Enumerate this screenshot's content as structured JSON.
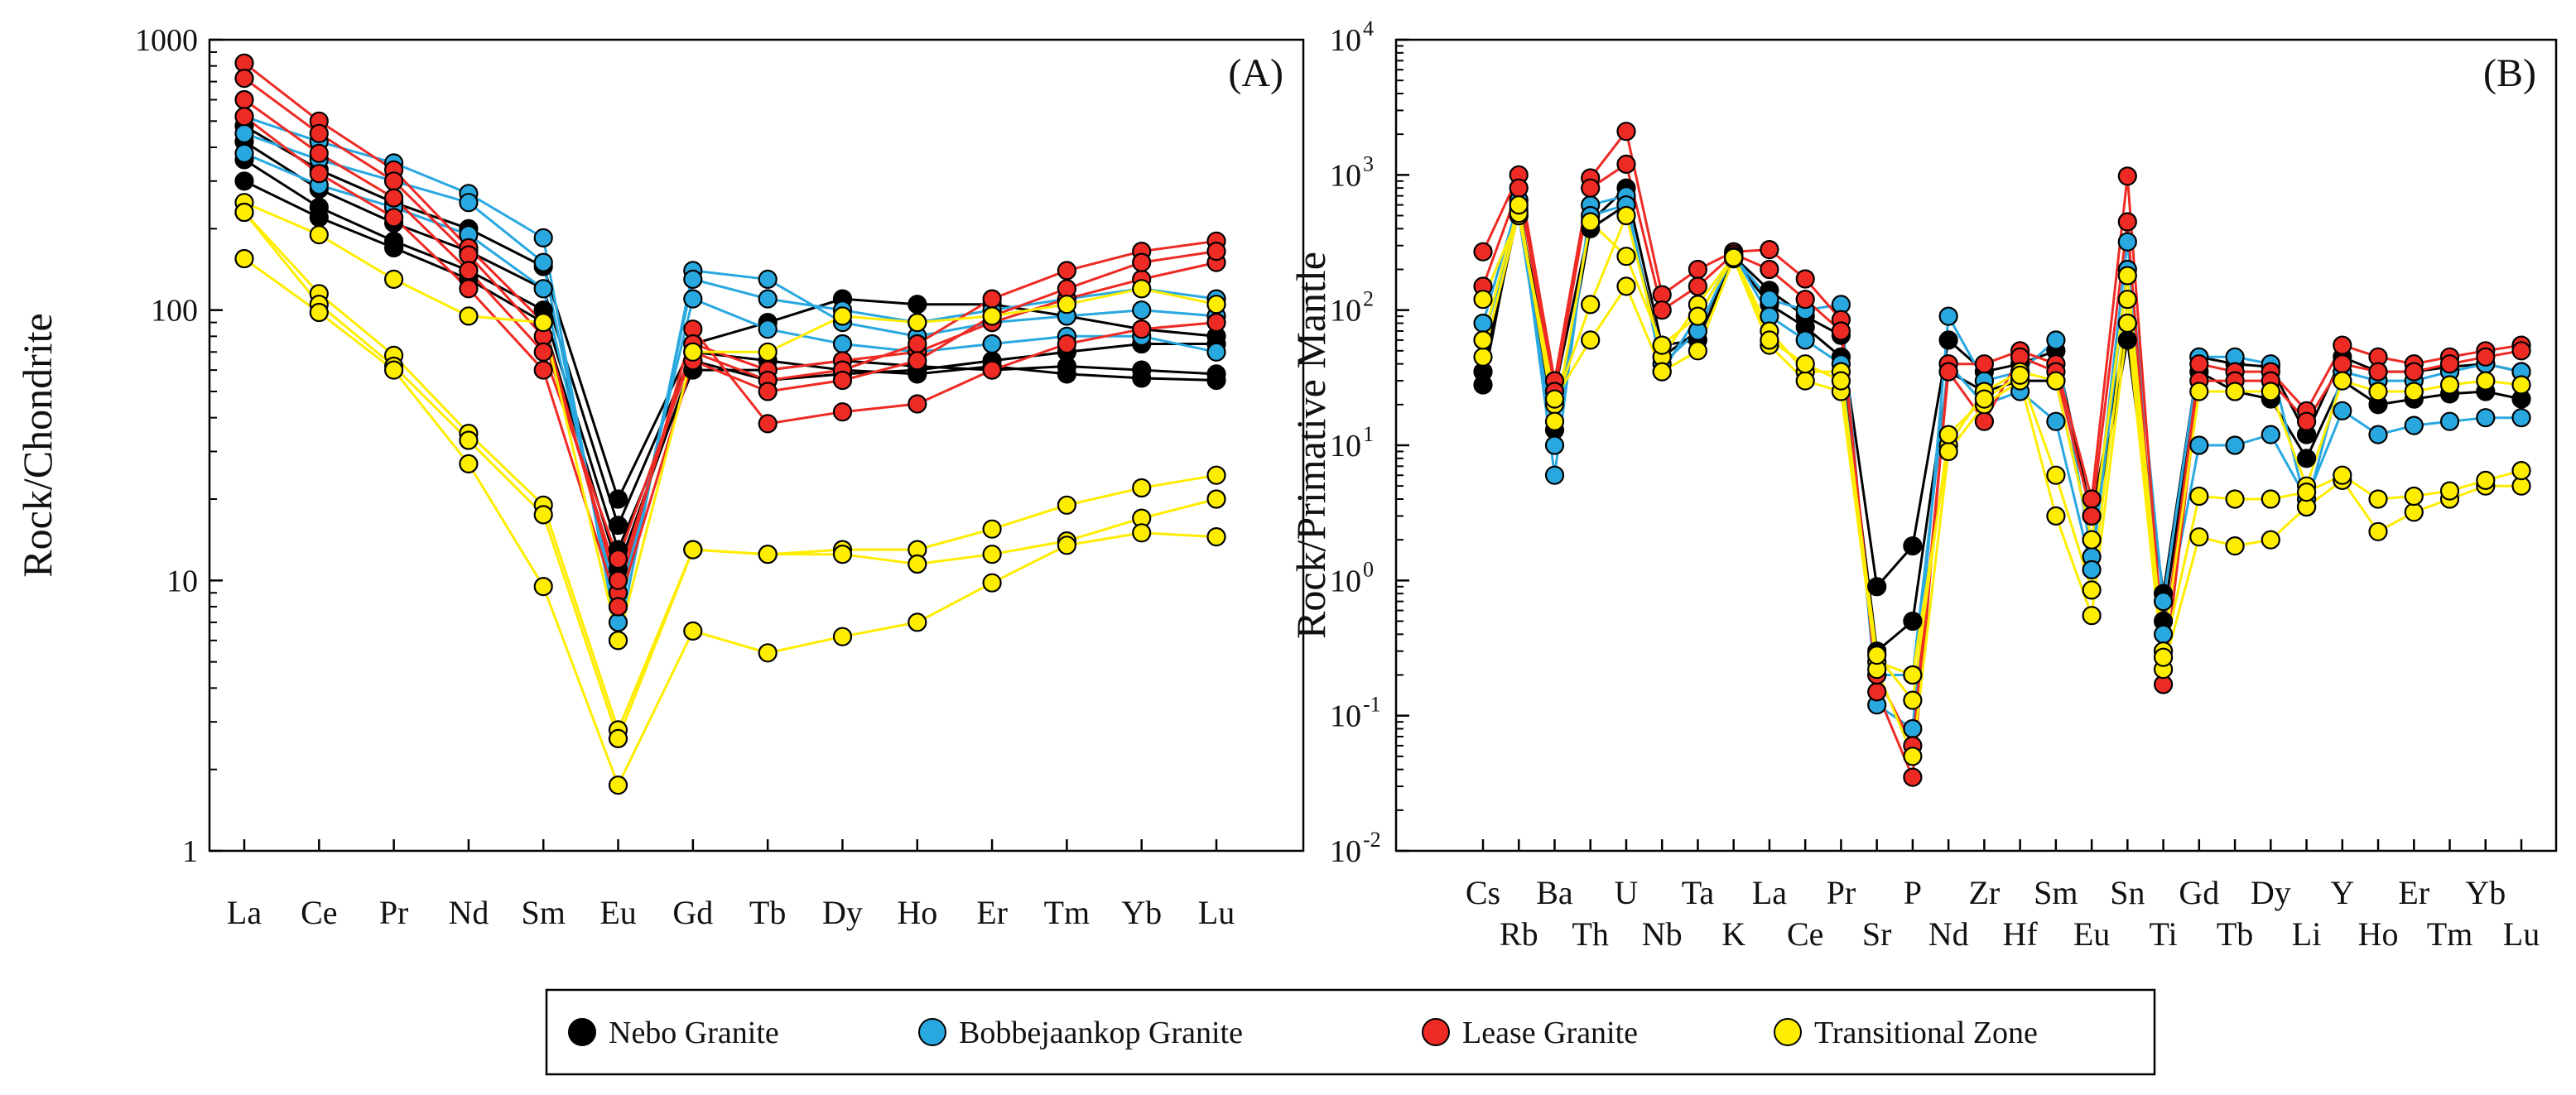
{
  "chart_data": [
    {
      "type": "line",
      "panel_label": "(A)",
      "ylabel": "Rock/Chondrite",
      "yscale": "log",
      "ylim": [
        1,
        1000
      ],
      "yticks": [
        1,
        10,
        100,
        1000
      ],
      "ytick_labels": [
        "1",
        "10",
        "100",
        "1000"
      ],
      "categories": [
        "La",
        "Ce",
        "Pr",
        "Nd",
        "Sm",
        "Eu",
        "Gd",
        "Tb",
        "Dy",
        "Ho",
        "Er",
        "Tm",
        "Yb",
        "Lu"
      ],
      "series": [
        {
          "name": "Nebo Granite",
          "values": [
            480,
            330,
            250,
            200,
            145,
            20,
            75,
            90,
            110,
            105,
            105,
            95,
            85,
            80
          ]
        },
        {
          "name": "Nebo Granite",
          "values": [
            420,
            280,
            210,
            165,
            120,
            16,
            70,
            65,
            60,
            58,
            62,
            58,
            56,
            55
          ]
        },
        {
          "name": "Nebo Granite",
          "values": [
            360,
            240,
            180,
            140,
            100,
            13,
            60,
            60,
            65,
            62,
            60,
            62,
            60,
            58
          ]
        },
        {
          "name": "Nebo Granite",
          "values": [
            300,
            220,
            170,
            130,
            90,
            11,
            65,
            55,
            58,
            60,
            65,
            70,
            75,
            75
          ]
        },
        {
          "name": "Bobbejaankop Granite",
          "values": [
            520,
            420,
            350,
            270,
            185,
            6,
            140,
            130,
            90,
            80,
            90,
            95,
            100,
            95
          ]
        },
        {
          "name": "Bobbejaankop Granite",
          "values": [
            450,
            360,
            300,
            250,
            150,
            7,
            130,
            110,
            100,
            90,
            100,
            110,
            120,
            110
          ]
        },
        {
          "name": "Bobbejaankop Granite",
          "values": [
            380,
            290,
            240,
            190,
            120,
            8,
            110,
            85,
            75,
            70,
            75,
            80,
            80,
            70
          ]
        },
        {
          "name": "Lease Granite",
          "values": [
            820,
            500,
            330,
            170,
            90,
            9,
            85,
            38,
            42,
            45,
            60,
            75,
            85,
            90
          ]
        },
        {
          "name": "Lease Granite",
          "values": [
            720,
            450,
            300,
            160,
            80,
            10,
            75,
            60,
            65,
            70,
            90,
            110,
            130,
            150
          ]
        },
        {
          "name": "Lease Granite",
          "values": [
            600,
            380,
            260,
            140,
            70,
            12,
            70,
            55,
            60,
            75,
            110,
            140,
            165,
            180
          ]
        },
        {
          "name": "Lease Granite",
          "values": [
            520,
            320,
            220,
            120,
            60,
            8,
            65,
            50,
            55,
            65,
            95,
            120,
            150,
            165
          ]
        },
        {
          "name": "Transitional Zone",
          "values": [
            250,
            190,
            130,
            95,
            90,
            6,
            70,
            70,
            95,
            90,
            95,
            105,
            120,
            105
          ]
        },
        {
          "name": "Transitional Zone",
          "values": [
            230,
            115,
            68,
            35,
            19,
            2.8,
            13,
            12.5,
            13,
            13,
            15.5,
            19,
            22,
            24.5
          ]
        },
        {
          "name": "Transitional Zone",
          "values": [
            230,
            105,
            62,
            33,
            17.5,
            2.6,
            13,
            12.5,
            12.5,
            11.5,
            12.5,
            14,
            17,
            20
          ]
        },
        {
          "name": "Transitional Zone",
          "values": [
            155,
            98,
            60,
            27,
            9.5,
            1.75,
            6.5,
            5.4,
            6.2,
            7,
            9.8,
            13.5,
            15,
            14.5
          ]
        }
      ]
    },
    {
      "type": "line",
      "panel_label": "(B)",
      "ylabel": "Rock/Primative Mantle",
      "yscale": "log",
      "ylim": [
        0.01,
        10000
      ],
      "yticks": [
        0.01,
        0.1,
        1,
        10,
        100,
        1000,
        10000
      ],
      "ytick_labels": [
        {
          "base": "10",
          "exp": "-2"
        },
        {
          "base": "10",
          "exp": "-1"
        },
        {
          "base": "10",
          "exp": "0"
        },
        {
          "base": "10",
          "exp": "1"
        },
        {
          "base": "10",
          "exp": "2"
        },
        {
          "base": "10",
          "exp": "3"
        },
        {
          "base": "10",
          "exp": "4"
        }
      ],
      "categories_top": [
        "Cs",
        "Ba",
        "U",
        "Ta",
        "La",
        "Pr",
        "P",
        "Zr",
        "Sm",
        "Sn",
        "Gd",
        "Dy",
        "Y",
        "Er",
        "Yb"
      ],
      "categories_bottom": [
        "Rb",
        "Th",
        "Nb",
        "K",
        "Ce",
        "Sr",
        "Nd",
        "Hf",
        "Eu",
        "Ti",
        "Tb",
        "Li",
        "Ho",
        "Tm",
        "Lu"
      ],
      "categories": [
        "Cs",
        "Rb",
        "Ba",
        "Th",
        "U",
        "Nb",
        "Ta",
        "K",
        "La",
        "Ce",
        "Pr",
        "Sr",
        "P",
        "Nd",
        "Zr",
        "Hf",
        "Sm",
        "Eu",
        "Sn",
        "Ti",
        "Gd",
        "Tb",
        "Dy",
        "Li",
        "Y",
        "Ho",
        "Er",
        "Tm",
        "Yb",
        "Lu"
      ],
      "series": [
        {
          "name": "Nebo Granite",
          "values": [
            28,
            650,
            13,
            400,
            600,
            45,
            70,
            250,
            140,
            90,
            65,
            0.9,
            1.8,
            60,
            35,
            40,
            50,
            3,
            80,
            0.8,
            45,
            40,
            38,
            12,
            45,
            35,
            35,
            38,
            40,
            35
          ]
        },
        {
          "name": "Nebo Granite",
          "values": [
            35,
            550,
            25,
            450,
            800,
            55,
            60,
            240,
            110,
            75,
            45,
            0.3,
            0.5,
            35,
            25,
            30,
            30,
            2,
            60,
            0.5,
            35,
            25,
            22,
            8,
            30,
            20,
            22,
            24,
            25,
            22
          ]
        },
        {
          "name": "Bobbejaankop Granite",
          "values": [
            80,
            650,
            6,
            600,
            700,
            35,
            90,
            250,
            120,
            100,
            110,
            0.12,
            0.08,
            90,
            30,
            35,
            60,
            1.5,
            320,
            0.7,
            45,
            45,
            40,
            3.5,
            35,
            30,
            30,
            35,
            40,
            35
          ]
        },
        {
          "name": "Bobbejaankop Granite",
          "values": [
            60,
            500,
            10,
            500,
            600,
            40,
            70,
            260,
            90,
            60,
            40,
            0.2,
            0.2,
            40,
            20,
            25,
            15,
            1.2,
            200,
            0.4,
            10,
            10,
            12,
            4,
            18,
            12,
            14,
            15,
            16,
            16
          ]
        },
        {
          "name": "Lease Granite",
          "values": [
            270,
            1000,
            30,
            950,
            2100,
            130,
            200,
            270,
            280,
            170,
            85,
            0.15,
            0.035,
            40,
            40,
            50,
            40,
            4,
            980,
            0.3,
            40,
            35,
            35,
            18,
            55,
            45,
            40,
            45,
            50,
            55
          ]
        },
        {
          "name": "Lease Granite",
          "values": [
            150,
            800,
            25,
            800,
            1200,
            100,
            150,
            260,
            200,
            120,
            70,
            0.2,
            0.06,
            35,
            15,
            45,
            35,
            3,
            450,
            0.17,
            30,
            30,
            30,
            15,
            40,
            35,
            35,
            40,
            45,
            50
          ]
        },
        {
          "name": "Transitional Zone",
          "values": [
            120,
            500,
            20,
            110,
            500,
            45,
            110,
            250,
            70,
            35,
            35,
            0.25,
            0.2,
            10,
            25,
            35,
            30,
            2,
            180,
            0.3,
            25,
            25,
            25,
            5,
            30,
            25,
            25,
            28,
            30,
            28
          ]
        },
        {
          "name": "Transitional Zone",
          "values": [
            45,
            520,
            22,
            60,
            150,
            35,
            50,
            240,
            55,
            30,
            25,
            0.22,
            0.05,
            9,
            20,
            30,
            3,
            0.55,
            80,
            0.22,
            2.1,
            1.8,
            2,
            3.5,
            5.5,
            2.3,
            3.2,
            4,
            5,
            5
          ]
        },
        {
          "name": "Transitional Zone",
          "values": [
            60,
            600,
            15,
            450,
            250,
            55,
            90,
            245,
            60,
            40,
            30,
            0.28,
            0.13,
            12,
            22,
            33,
            6,
            0.85,
            120,
            0.27,
            4.2,
            4,
            4,
            4.5,
            6,
            4,
            4.2,
            4.6,
            5.5,
            6.5
          ]
        }
      ]
    }
  ],
  "legend": {
    "items": [
      {
        "label": "Nebo Granite",
        "color": "#000000"
      },
      {
        "label": "Bobbejaankop Granite",
        "color": "#29a8e0"
      },
      {
        "label": "Lease Granite",
        "color": "#ee2a24"
      },
      {
        "label": "Transitional Zone",
        "color": "#ffed00"
      }
    ]
  }
}
